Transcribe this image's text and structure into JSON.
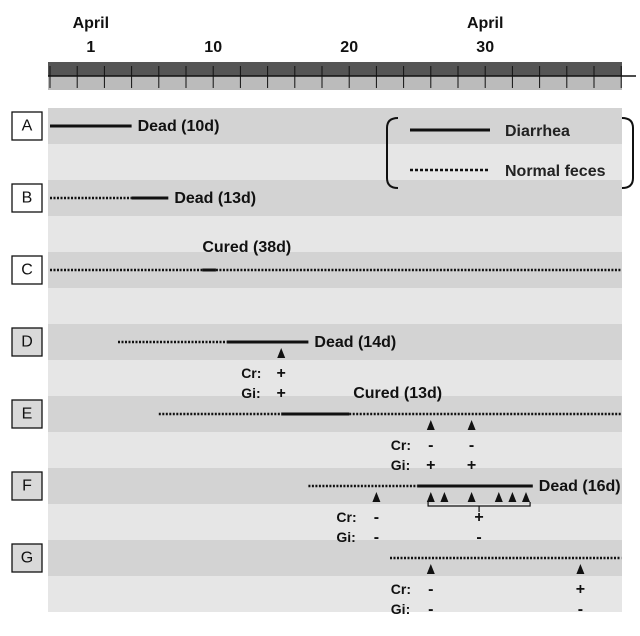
{
  "axis": {
    "top_labels": [
      {
        "day": 3,
        "month": "April",
        "date": "1"
      },
      {
        "day": 12,
        "month": "",
        "date": "10"
      },
      {
        "day": 22,
        "month": "",
        "date": "20"
      },
      {
        "day": 32,
        "month": "April",
        "date": "30"
      }
    ]
  },
  "legend": {
    "diarrhea": "Diarrhea",
    "normal": "Normal feces"
  },
  "row_label_cr": "Cr:",
  "row_label_gi": "Gi:",
  "animals": [
    {
      "id": "A",
      "gray_box": false,
      "outcome": "Dead (10d)",
      "segments": [
        {
          "type": "diarrhea",
          "start": 0,
          "end": 6
        }
      ],
      "markers": []
    },
    {
      "id": "B",
      "gray_box": false,
      "outcome": "Dead (13d)",
      "segments": [
        {
          "type": "normal",
          "start": 0,
          "end": 6
        },
        {
          "type": "diarrhea",
          "start": 6,
          "end": 8.7
        }
      ],
      "markers": []
    },
    {
      "id": "C",
      "gray_box": false,
      "outcome": "Cured (38d)",
      "segments": [
        {
          "type": "normal",
          "start": 0,
          "end": 11.2
        },
        {
          "type": "diarrhea",
          "start": 11.2,
          "end": 12.2
        },
        {
          "type": "normal",
          "start": 12.2,
          "end": 42
        }
      ],
      "markers": []
    },
    {
      "id": "D",
      "gray_box": true,
      "outcome": "Dead (14d)",
      "segments": [
        {
          "type": "normal",
          "start": 5,
          "end": 13
        },
        {
          "type": "diarrhea",
          "start": 13,
          "end": 19
        }
      ],
      "markers": [
        {
          "day": 17,
          "cr": "+",
          "gi": "+"
        }
      ]
    },
    {
      "id": "E",
      "gray_box": true,
      "outcome": "Cured (13d)",
      "segments": [
        {
          "type": "normal",
          "start": 8,
          "end": 17
        },
        {
          "type": "diarrhea",
          "start": 17,
          "end": 22
        },
        {
          "type": "normal",
          "start": 22,
          "end": 42
        }
      ],
      "markers": [
        {
          "day": 28,
          "cr": "-",
          "gi": "+"
        },
        {
          "day": 31,
          "cr": "-",
          "gi": "+"
        }
      ]
    },
    {
      "id": "F",
      "gray_box": true,
      "outcome": "Dead (16d)",
      "segments": [
        {
          "type": "normal",
          "start": 19,
          "end": 27
        },
        {
          "type": "diarrhea",
          "start": 27,
          "end": 35.5
        }
      ],
      "markers": [
        {
          "day": 24,
          "cr": "-",
          "gi": "-"
        },
        {
          "day": 28,
          "cr": "",
          "gi": ""
        },
        {
          "day": 29,
          "cr": "",
          "gi": ""
        },
        {
          "day": 31,
          "cr": "",
          "gi": ""
        },
        {
          "day": 33,
          "cr": "",
          "gi": ""
        },
        {
          "day": 34,
          "cr": "",
          "gi": ""
        },
        {
          "day": 35,
          "cr": "",
          "gi": ""
        }
      ],
      "bracket": {
        "start": 27.8,
        "end": 35.3,
        "cr": "+",
        "gi": "-"
      }
    },
    {
      "id": "G",
      "gray_box": true,
      "outcome": "",
      "segments": [
        {
          "type": "normal",
          "start": 25,
          "end": 42
        }
      ],
      "markers": [
        {
          "day": 28,
          "cr": "-",
          "gi": "-"
        },
        {
          "day": 39,
          "cr": "+",
          "gi": "-"
        }
      ]
    }
  ]
}
